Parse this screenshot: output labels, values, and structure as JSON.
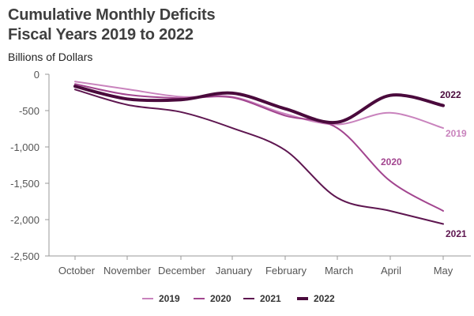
{
  "chart_data": {
    "type": "line",
    "title": "Cumulative Monthly Deficits",
    "subtitle": "Fiscal Years 2019 to 2022",
    "ylabel": "Billions of Dollars",
    "xlabel": "",
    "categories": [
      "October",
      "November",
      "December",
      "January",
      "February",
      "March",
      "April",
      "May"
    ],
    "ylim": [
      -2500,
      0
    ],
    "yticks": [
      0,
      -500,
      -1000,
      -1500,
      -2000,
      -2500
    ],
    "ytick_labels": [
      "0",
      "-500",
      "-1,000",
      "-1,500",
      "-2,000",
      "-2,500"
    ],
    "grid": false,
    "legend_position": "bottom",
    "series": [
      {
        "name": "2019",
        "color": "#c983bd",
        "width": 2,
        "values": [
          -100,
          -205,
          -310,
          -310,
          -545,
          -690,
          -530,
          -740
        ],
        "end_label": "2019"
      },
      {
        "name": "2020",
        "color": "#a2458f",
        "width": 2,
        "values": [
          -134,
          -280,
          -330,
          -320,
          -570,
          -740,
          -1470,
          -1880
        ],
        "end_label": "2020"
      },
      {
        "name": "2021",
        "color": "#5e1650",
        "width": 2,
        "values": [
          -210,
          -420,
          -520,
          -740,
          -1045,
          -1700,
          -1880,
          -2060
        ],
        "end_label": "2021"
      },
      {
        "name": "2022",
        "color": "#4a0a3c",
        "width": 4,
        "values": [
          -165,
          -340,
          -350,
          -260,
          -475,
          -660,
          -290,
          -430
        ],
        "end_label": "2022"
      }
    ]
  }
}
